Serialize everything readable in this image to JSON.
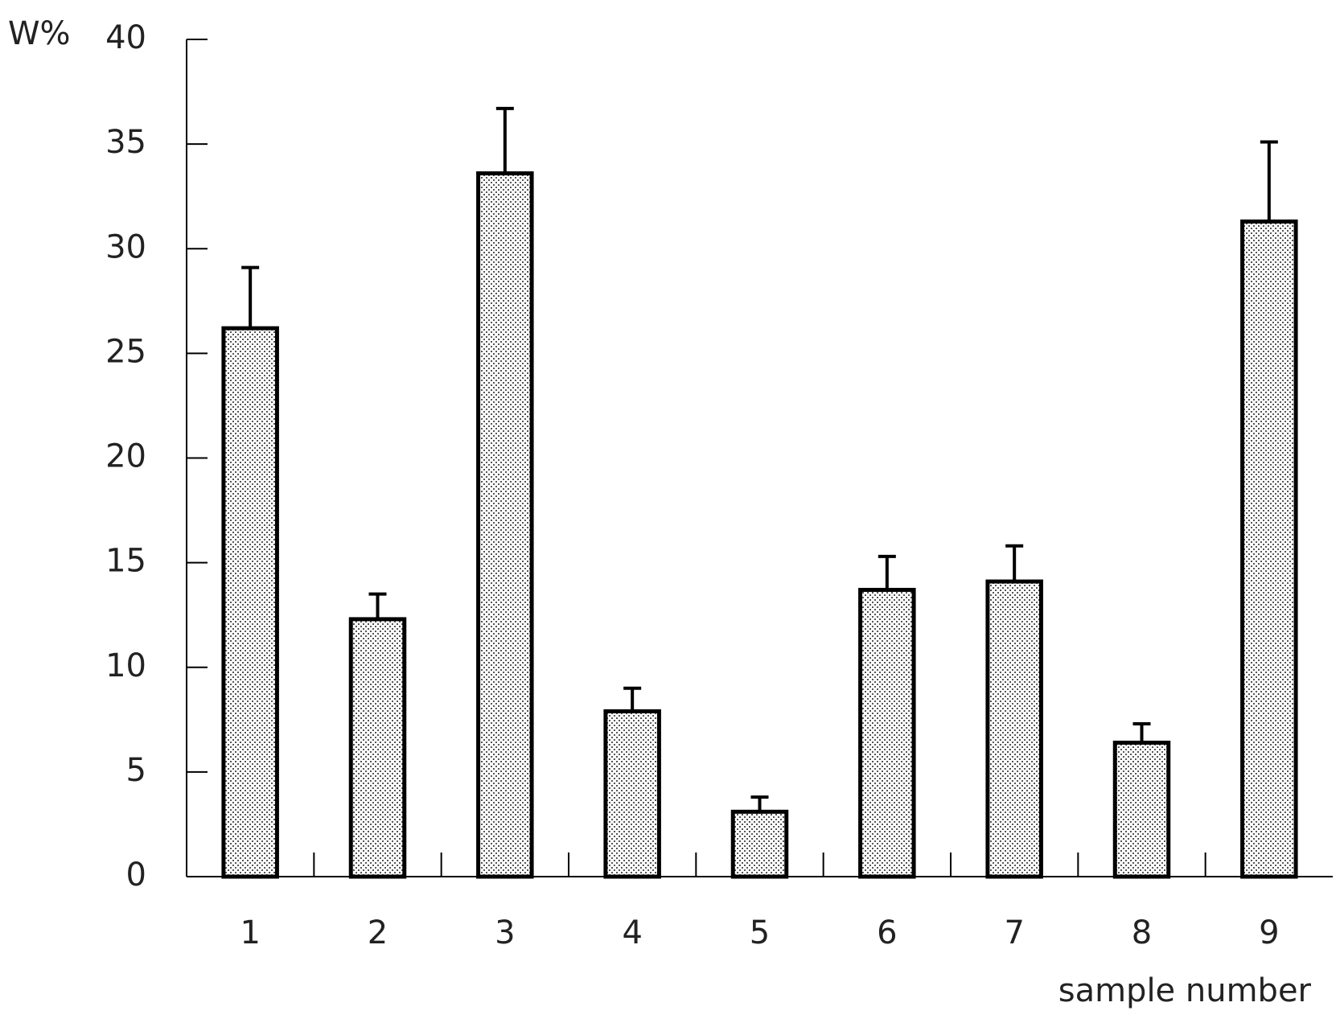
{
  "chart_data": {
    "type": "bar",
    "y_label": "W%",
    "x_label": "sample number",
    "categories": [
      "1",
      "2",
      "3",
      "4",
      "5",
      "6",
      "7",
      "8",
      "9"
    ],
    "values": [
      26.2,
      12.3,
      33.6,
      7.9,
      3.1,
      13.7,
      14.1,
      6.4,
      31.3
    ],
    "errors": [
      2.9,
      1.2,
      3.1,
      1.1,
      0.7,
      1.6,
      1.7,
      0.9,
      3.8
    ],
    "ylim": [
      0,
      40
    ],
    "yticks": [
      0,
      5,
      10,
      15,
      20,
      25,
      30,
      35,
      40
    ]
  }
}
